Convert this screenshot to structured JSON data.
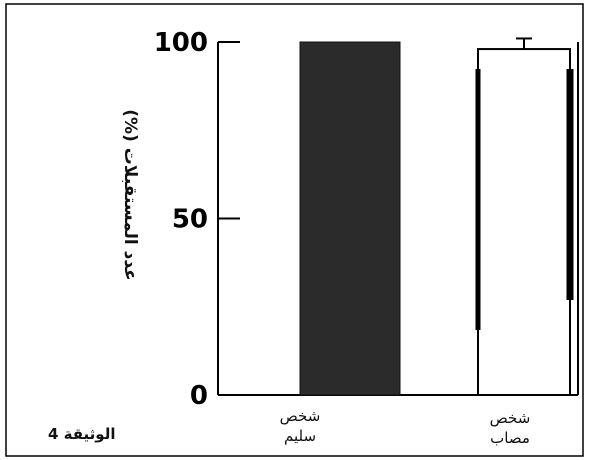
{
  "chart_data": {
    "type": "bar",
    "categories": [
      "شخص سليم",
      "شخص مصاب"
    ],
    "category_lines": [
      [
        "شخص",
        "سليم"
      ],
      [
        "شخص",
        "مصاب"
      ]
    ],
    "values": [
      100,
      98
    ],
    "error": [
      0,
      3
    ],
    "ylabel": "عدد المستقبلات (%)",
    "yticks": [
      0,
      50,
      100
    ],
    "ylim": [
      0,
      100
    ],
    "bar_styles": [
      "filled",
      "outlined"
    ],
    "colors": {
      "filled": "#2b2b2b",
      "outline": "#000000",
      "axis": "#000000"
    }
  },
  "document_label": "الوثيقة 4"
}
